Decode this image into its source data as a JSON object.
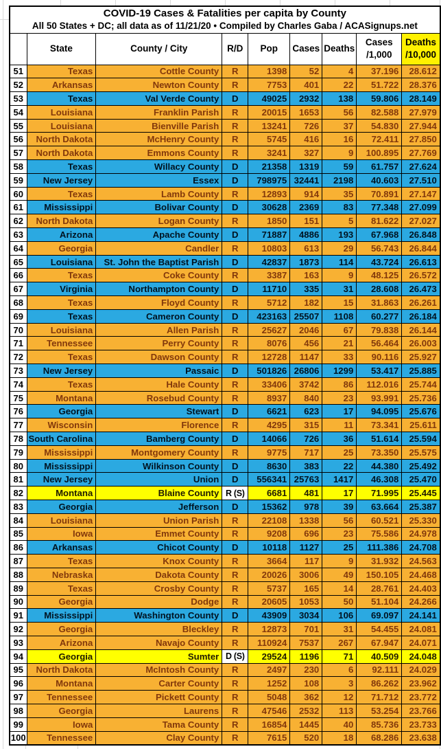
{
  "colors": {
    "orange": "#f8b133",
    "blue": "#2ba9e1",
    "yellow": "#ffff00",
    "header_yellow": "#fff100",
    "orange_text": "#82380b"
  },
  "table": {
    "title": {
      "line1": "COVID-19 Cases & Fatalities per capita by County",
      "line2": "All 50 States + DC; all data as of 11/21/20  • Compiled by Charles Gaba / ACASignups.net"
    },
    "columns": [
      {
        "key": "rank",
        "label": ""
      },
      {
        "key": "state",
        "label": "State"
      },
      {
        "key": "county",
        "label": "County / City"
      },
      {
        "key": "rd",
        "label": "R/D"
      },
      {
        "key": "pop",
        "label": "Pop"
      },
      {
        "key": "cases",
        "label": "Cases"
      },
      {
        "key": "deaths",
        "label": "Deaths"
      },
      {
        "key": "cases_per_1000",
        "label": "Cases",
        "label2": "/1,000"
      },
      {
        "key": "deaths_per_10000",
        "label": "Deaths",
        "label2": "/10,000"
      }
    ],
    "row_keys": [
      "rank",
      "state",
      "county",
      "rd",
      "pop",
      "cases",
      "deaths",
      "cases_per_1000",
      "deaths_per_10000"
    ],
    "rows": [
      {
        "rank": "51",
        "state": "Texas",
        "county": "Cottle County",
        "rd": "R",
        "pop": "1398",
        "cases": "52",
        "deaths": "4",
        "cases_per_1000": "37.196",
        "deaths_per_10000": "28.612",
        "fill": "orange"
      },
      {
        "rank": "52",
        "state": "Arkansas",
        "county": "Newton County",
        "rd": "R",
        "pop": "7753",
        "cases": "401",
        "deaths": "22",
        "cases_per_1000": "51.722",
        "deaths_per_10000": "28.376",
        "fill": "orange"
      },
      {
        "rank": "53",
        "state": "Texas",
        "county": "Val Verde County",
        "rd": "D",
        "pop": "49025",
        "cases": "2932",
        "deaths": "138",
        "cases_per_1000": "59.806",
        "deaths_per_10000": "28.149",
        "fill": "blue"
      },
      {
        "rank": "54",
        "state": "Louisiana",
        "county": "Franklin Parish",
        "rd": "R",
        "pop": "20015",
        "cases": "1653",
        "deaths": "56",
        "cases_per_1000": "82.588",
        "deaths_per_10000": "27.979",
        "fill": "orange"
      },
      {
        "rank": "55",
        "state": "Louisiana",
        "county": "Bienville Parish",
        "rd": "R",
        "pop": "13241",
        "cases": "726",
        "deaths": "37",
        "cases_per_1000": "54.830",
        "deaths_per_10000": "27.944",
        "fill": "orange"
      },
      {
        "rank": "56",
        "state": "North Dakota",
        "county": "McHenry County",
        "rd": "R",
        "pop": "5745",
        "cases": "416",
        "deaths": "16",
        "cases_per_1000": "72.411",
        "deaths_per_10000": "27.850",
        "fill": "orange"
      },
      {
        "rank": "57",
        "state": "North Dakota",
        "county": "Emmons County",
        "rd": "R",
        "pop": "3241",
        "cases": "327",
        "deaths": "9",
        "cases_per_1000": "100.895",
        "deaths_per_10000": "27.769",
        "fill": "orange"
      },
      {
        "rank": "58",
        "state": "Texas",
        "county": "Willacy County",
        "rd": "D",
        "pop": "21358",
        "cases": "1319",
        "deaths": "59",
        "cases_per_1000": "61.757",
        "deaths_per_10000": "27.624",
        "fill": "blue"
      },
      {
        "rank": "59",
        "state": "New Jersey",
        "county": "Essex",
        "rd": "D",
        "pop": "798975",
        "cases": "32441",
        "deaths": "2198",
        "cases_per_1000": "40.603",
        "deaths_per_10000": "27.510",
        "fill": "blue"
      },
      {
        "rank": "60",
        "state": "Texas",
        "county": "Lamb County",
        "rd": "R",
        "pop": "12893",
        "cases": "914",
        "deaths": "35",
        "cases_per_1000": "70.891",
        "deaths_per_10000": "27.147",
        "fill": "orange"
      },
      {
        "rank": "61",
        "state": "Mississippi",
        "county": "Bolivar County",
        "rd": "D",
        "pop": "30628",
        "cases": "2369",
        "deaths": "83",
        "cases_per_1000": "77.348",
        "deaths_per_10000": "27.099",
        "fill": "blue"
      },
      {
        "rank": "62",
        "state": "North Dakota",
        "county": "Logan County",
        "rd": "R",
        "pop": "1850",
        "cases": "151",
        "deaths": "5",
        "cases_per_1000": "81.622",
        "deaths_per_10000": "27.027",
        "fill": "orange"
      },
      {
        "rank": "63",
        "state": "Arizona",
        "county": "Apache County",
        "rd": "D",
        "pop": "71887",
        "cases": "4886",
        "deaths": "193",
        "cases_per_1000": "67.968",
        "deaths_per_10000": "26.848",
        "fill": "blue"
      },
      {
        "rank": "64",
        "state": "Georgia",
        "county": "Candler",
        "rd": "R",
        "pop": "10803",
        "cases": "613",
        "deaths": "29",
        "cases_per_1000": "56.743",
        "deaths_per_10000": "26.844",
        "fill": "orange"
      },
      {
        "rank": "65",
        "state": "Louisiana",
        "county": "St. John the Baptist Parish",
        "rd": "D",
        "pop": "42837",
        "cases": "1873",
        "deaths": "114",
        "cases_per_1000": "43.724",
        "deaths_per_10000": "26.613",
        "fill": "blue"
      },
      {
        "rank": "66",
        "state": "Texas",
        "county": "Coke County",
        "rd": "R",
        "pop": "3387",
        "cases": "163",
        "deaths": "9",
        "cases_per_1000": "48.125",
        "deaths_per_10000": "26.572",
        "fill": "orange"
      },
      {
        "rank": "67",
        "state": "Virginia",
        "county": "Northampton County",
        "rd": "D",
        "pop": "11710",
        "cases": "335",
        "deaths": "31",
        "cases_per_1000": "28.608",
        "deaths_per_10000": "26.473",
        "fill": "blue"
      },
      {
        "rank": "68",
        "state": "Texas",
        "county": "Floyd County",
        "rd": "R",
        "pop": "5712",
        "cases": "182",
        "deaths": "15",
        "cases_per_1000": "31.863",
        "deaths_per_10000": "26.261",
        "fill": "orange"
      },
      {
        "rank": "69",
        "state": "Texas",
        "county": "Cameron County",
        "rd": "D",
        "pop": "423163",
        "cases": "25507",
        "deaths": "1108",
        "cases_per_1000": "60.277",
        "deaths_per_10000": "26.184",
        "fill": "blue"
      },
      {
        "rank": "70",
        "state": "Louisiana",
        "county": "Allen Parish",
        "rd": "R",
        "pop": "25627",
        "cases": "2046",
        "deaths": "67",
        "cases_per_1000": "79.838",
        "deaths_per_10000": "26.144",
        "fill": "orange"
      },
      {
        "rank": "71",
        "state": "Tennessee",
        "county": "Perry County",
        "rd": "R",
        "pop": "8076",
        "cases": "456",
        "deaths": "21",
        "cases_per_1000": "56.464",
        "deaths_per_10000": "26.003",
        "fill": "orange"
      },
      {
        "rank": "72",
        "state": "Texas",
        "county": "Dawson County",
        "rd": "R",
        "pop": "12728",
        "cases": "1147",
        "deaths": "33",
        "cases_per_1000": "90.116",
        "deaths_per_10000": "25.927",
        "fill": "orange"
      },
      {
        "rank": "73",
        "state": "New Jersey",
        "county": "Passaic",
        "rd": "D",
        "pop": "501826",
        "cases": "26806",
        "deaths": "1299",
        "cases_per_1000": "53.417",
        "deaths_per_10000": "25.885",
        "fill": "blue"
      },
      {
        "rank": "74",
        "state": "Texas",
        "county": "Hale County",
        "rd": "R",
        "pop": "33406",
        "cases": "3742",
        "deaths": "86",
        "cases_per_1000": "112.016",
        "deaths_per_10000": "25.744",
        "fill": "orange"
      },
      {
        "rank": "75",
        "state": "Montana",
        "county": "Rosebud County",
        "rd": "R",
        "pop": "8937",
        "cases": "840",
        "deaths": "23",
        "cases_per_1000": "93.991",
        "deaths_per_10000": "25.736",
        "fill": "orange"
      },
      {
        "rank": "76",
        "state": "Georgia",
        "county": "Stewart",
        "rd": "D",
        "pop": "6621",
        "cases": "623",
        "deaths": "17",
        "cases_per_1000": "94.095",
        "deaths_per_10000": "25.676",
        "fill": "blue"
      },
      {
        "rank": "77",
        "state": "Wisconsin",
        "county": "Florence",
        "rd": "R",
        "pop": "4295",
        "cases": "315",
        "deaths": "11",
        "cases_per_1000": "73.341",
        "deaths_per_10000": "25.611",
        "fill": "orange"
      },
      {
        "rank": "78",
        "state": "South Carolina",
        "county": "Bamberg County",
        "rd": "D",
        "pop": "14066",
        "cases": "726",
        "deaths": "36",
        "cases_per_1000": "51.614",
        "deaths_per_10000": "25.594",
        "fill": "blue"
      },
      {
        "rank": "79",
        "state": "Mississippi",
        "county": "Montgomery County",
        "rd": "R",
        "pop": "9775",
        "cases": "717",
        "deaths": "25",
        "cases_per_1000": "73.350",
        "deaths_per_10000": "25.575",
        "fill": "orange"
      },
      {
        "rank": "80",
        "state": "Mississippi",
        "county": "Wilkinson County",
        "rd": "D",
        "pop": "8630",
        "cases": "383",
        "deaths": "22",
        "cases_per_1000": "44.380",
        "deaths_per_10000": "25.492",
        "fill": "blue"
      },
      {
        "rank": "81",
        "state": "New Jersey",
        "county": "Union",
        "rd": "D",
        "pop": "556341",
        "cases": "25763",
        "deaths": "1417",
        "cases_per_1000": "46.308",
        "deaths_per_10000": "25.470",
        "fill": "blue"
      },
      {
        "rank": "82",
        "state": "Montana",
        "county": "Blaine County",
        "rd": "R (S)",
        "special": true,
        "pop": "6681",
        "cases": "481",
        "deaths": "17",
        "cases_per_1000": "71.995",
        "deaths_per_10000": "25.445",
        "fill": "yellow"
      },
      {
        "rank": "83",
        "state": "Georgia",
        "county": "Jefferson",
        "rd": "D",
        "pop": "15362",
        "cases": "978",
        "deaths": "39",
        "cases_per_1000": "63.664",
        "deaths_per_10000": "25.387",
        "fill": "blue"
      },
      {
        "rank": "84",
        "state": "Louisiana",
        "county": "Union Parish",
        "rd": "R",
        "pop": "22108",
        "cases": "1338",
        "deaths": "56",
        "cases_per_1000": "60.521",
        "deaths_per_10000": "25.330",
        "fill": "orange"
      },
      {
        "rank": "85",
        "state": "Iowa",
        "county": "Emmet County",
        "rd": "R",
        "pop": "9208",
        "cases": "696",
        "deaths": "23",
        "cases_per_1000": "75.586",
        "deaths_per_10000": "24.978",
        "fill": "orange"
      },
      {
        "rank": "86",
        "state": "Arkansas",
        "county": "Chicot County",
        "rd": "D",
        "pop": "10118",
        "cases": "1127",
        "deaths": "25",
        "cases_per_1000": "111.386",
        "deaths_per_10000": "24.708",
        "fill": "blue"
      },
      {
        "rank": "87",
        "state": "Texas",
        "county": "Knox County",
        "rd": "R",
        "pop": "3664",
        "cases": "117",
        "deaths": "9",
        "cases_per_1000": "31.932",
        "deaths_per_10000": "24.563",
        "fill": "orange"
      },
      {
        "rank": "88",
        "state": "Nebraska",
        "county": "Dakota County",
        "rd": "R",
        "pop": "20026",
        "cases": "3006",
        "deaths": "49",
        "cases_per_1000": "150.105",
        "deaths_per_10000": "24.468",
        "fill": "orange"
      },
      {
        "rank": "89",
        "state": "Texas",
        "county": "Crosby County",
        "rd": "R",
        "pop": "5737",
        "cases": "165",
        "deaths": "14",
        "cases_per_1000": "28.761",
        "deaths_per_10000": "24.403",
        "fill": "orange"
      },
      {
        "rank": "90",
        "state": "Georgia",
        "county": "Dodge",
        "rd": "R",
        "pop": "20605",
        "cases": "1053",
        "deaths": "50",
        "cases_per_1000": "51.104",
        "deaths_per_10000": "24.266",
        "fill": "orange"
      },
      {
        "rank": "91",
        "state": "Mississippi",
        "county": "Washington County",
        "rd": "D",
        "pop": "43909",
        "cases": "3034",
        "deaths": "106",
        "cases_per_1000": "69.097",
        "deaths_per_10000": "24.141",
        "fill": "blue"
      },
      {
        "rank": "92",
        "state": "Georgia",
        "county": "Bleckley",
        "rd": "R",
        "pop": "12873",
        "cases": "701",
        "deaths": "31",
        "cases_per_1000": "54.455",
        "deaths_per_10000": "24.081",
        "fill": "orange"
      },
      {
        "rank": "93",
        "state": "Arizona",
        "county": "Navajo County",
        "rd": "R",
        "pop": "110924",
        "cases": "7537",
        "deaths": "267",
        "cases_per_1000": "67.947",
        "deaths_per_10000": "24.071",
        "fill": "orange"
      },
      {
        "rank": "94",
        "state": "Georgia",
        "county": "Sumter",
        "rd": "D (S)",
        "special": true,
        "pop": "29524",
        "cases": "1196",
        "deaths": "71",
        "cases_per_1000": "40.509",
        "deaths_per_10000": "24.048",
        "fill": "yellow"
      },
      {
        "rank": "95",
        "state": "North Dakota",
        "county": "McIntosh County",
        "rd": "R",
        "pop": "2497",
        "cases": "230",
        "deaths": "6",
        "cases_per_1000": "92.111",
        "deaths_per_10000": "24.029",
        "fill": "orange"
      },
      {
        "rank": "96",
        "state": "Montana",
        "county": "Carter County",
        "rd": "R",
        "pop": "1252",
        "cases": "108",
        "deaths": "3",
        "cases_per_1000": "86.262",
        "deaths_per_10000": "23.962",
        "fill": "orange"
      },
      {
        "rank": "97",
        "state": "Tennessee",
        "county": "Pickett County",
        "rd": "R",
        "pop": "5048",
        "cases": "362",
        "deaths": "12",
        "cases_per_1000": "71.712",
        "deaths_per_10000": "23.772",
        "fill": "orange"
      },
      {
        "rank": "98",
        "state": "Georgia",
        "county": "Laurens",
        "rd": "R",
        "pop": "47546",
        "cases": "2532",
        "deaths": "113",
        "cases_per_1000": "53.254",
        "deaths_per_10000": "23.766",
        "fill": "orange"
      },
      {
        "rank": "99",
        "state": "Iowa",
        "county": "Tama County",
        "rd": "R",
        "pop": "16854",
        "cases": "1445",
        "deaths": "40",
        "cases_per_1000": "85.736",
        "deaths_per_10000": "23.733",
        "fill": "orange"
      },
      {
        "rank": "100",
        "state": "Tennessee",
        "county": "Clay County",
        "rd": "R",
        "pop": "7615",
        "cases": "520",
        "deaths": "18",
        "cases_per_1000": "68.286",
        "deaths_per_10000": "23.638",
        "fill": "orange"
      }
    ]
  }
}
